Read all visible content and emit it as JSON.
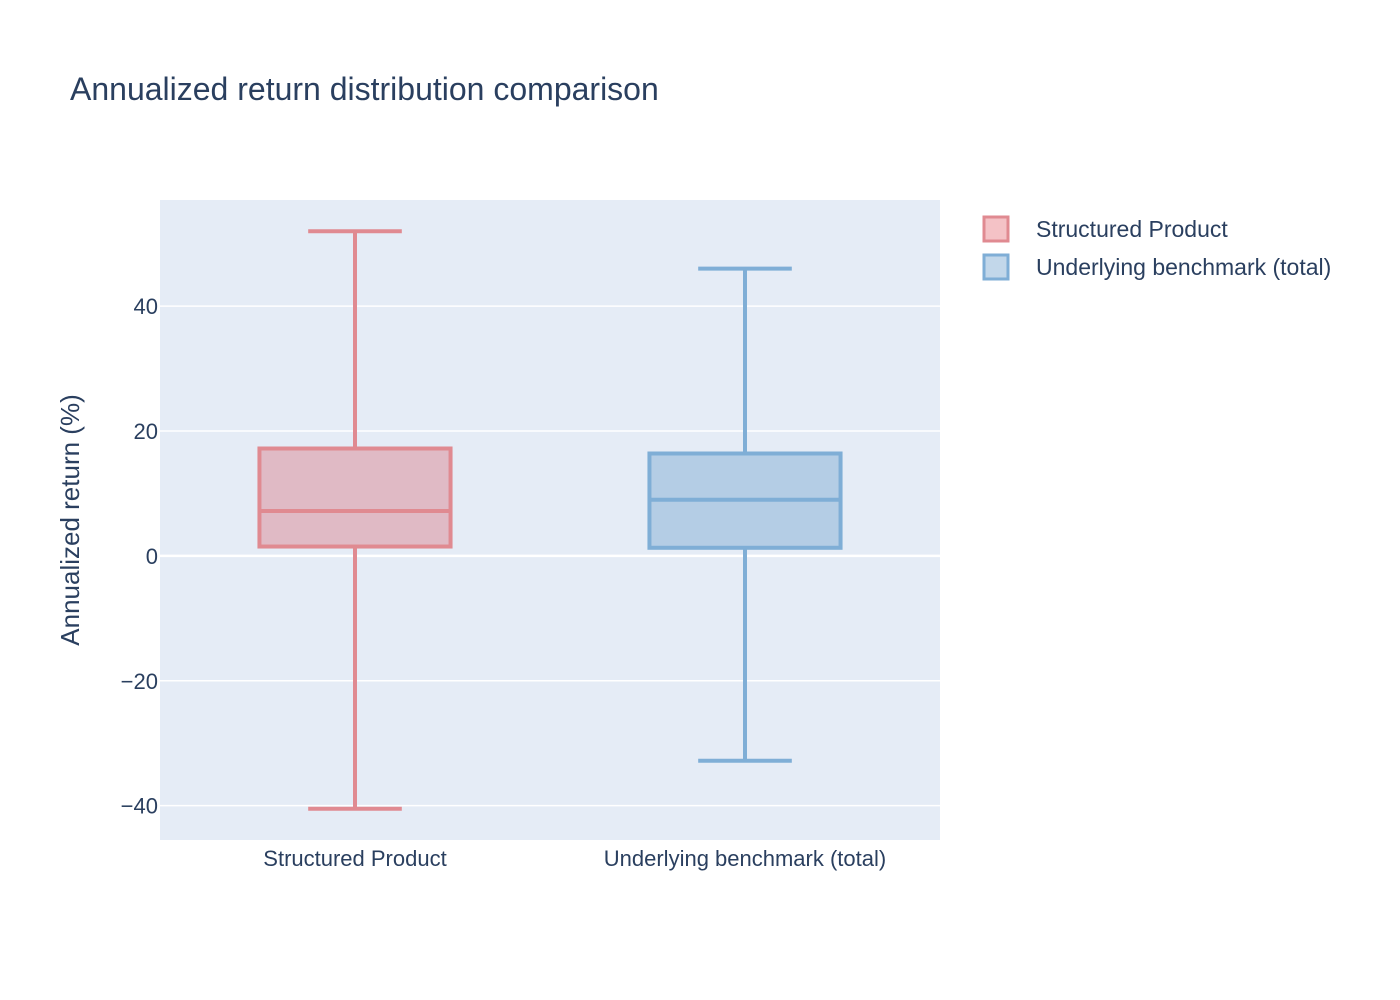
{
  "chart_data": {
    "type": "box",
    "title": "Annualized return distribution comparison",
    "xlabel": "",
    "ylabel": "Annualized return (%)",
    "ylim": [
      -45.5,
      57
    ],
    "yticks": [
      40,
      20,
      0,
      -20,
      -40
    ],
    "ytick_labels": [
      "40",
      "20",
      "0",
      "−20",
      "−40"
    ],
    "grid": true,
    "legend_position": "top-right, outside plot",
    "colors": {
      "plot_background": "#e5ecf6",
      "grid": "#ffffff",
      "text": "#2a3f5f"
    },
    "categories": [
      "Structured Product",
      "Underlying benchmark (total)"
    ],
    "series": [
      {
        "name": "Structured Product",
        "stroke": "#e08a91",
        "fill": "#f4c2c6",
        "box_fill": "#e0bac5",
        "min": -40.5,
        "q1": 1.5,
        "median": 7.2,
        "q3": 17.2,
        "max": 52
      },
      {
        "name": "Underlying benchmark (total)",
        "stroke": "#7faed6",
        "fill": "#c2d7ea",
        "box_fill": "#b4cde5",
        "min": -32.8,
        "q1": 1.3,
        "median": 9.0,
        "q3": 16.4,
        "max": 46
      }
    ]
  }
}
